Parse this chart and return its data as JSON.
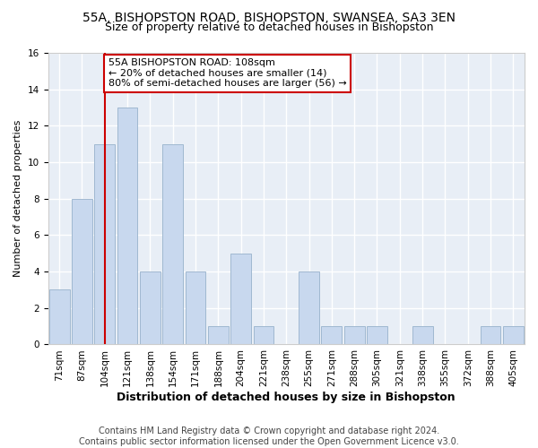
{
  "title1": "55A, BISHOPSTON ROAD, BISHOPSTON, SWANSEA, SA3 3EN",
  "title2": "Size of property relative to detached houses in Bishopston",
  "xlabel": "Distribution of detached houses by size in Bishopston",
  "ylabel": "Number of detached properties",
  "categories": [
    "71sqm",
    "87sqm",
    "104sqm",
    "121sqm",
    "138sqm",
    "154sqm",
    "171sqm",
    "188sqm",
    "204sqm",
    "221sqm",
    "238sqm",
    "255sqm",
    "271sqm",
    "288sqm",
    "305sqm",
    "321sqm",
    "338sqm",
    "355sqm",
    "372sqm",
    "388sqm",
    "405sqm"
  ],
  "values": [
    3,
    8,
    11,
    13,
    4,
    11,
    4,
    1,
    5,
    1,
    0,
    4,
    1,
    1,
    1,
    0,
    1,
    0,
    0,
    1,
    1
  ],
  "bar_color": "#c8d8ee",
  "bar_edge_color": "#a0b8d0",
  "vline_x": 2,
  "vline_color": "#cc0000",
  "annotation_text": "55A BISHOPSTON ROAD: 108sqm\n← 20% of detached houses are smaller (14)\n80% of semi-detached houses are larger (56) →",
  "annotation_box_color": "#ffffff",
  "annotation_box_edge_color": "#cc0000",
  "ylim": [
    0,
    16
  ],
  "yticks": [
    0,
    2,
    4,
    6,
    8,
    10,
    12,
    14,
    16
  ],
  "footnote": "Contains HM Land Registry data © Crown copyright and database right 2024.\nContains public sector information licensed under the Open Government Licence v3.0.",
  "bg_color": "#ffffff",
  "plot_bg_color": "#e8eef6",
  "grid_color": "#ffffff",
  "title1_fontsize": 10,
  "title2_fontsize": 9,
  "xlabel_fontsize": 9,
  "ylabel_fontsize": 8,
  "tick_fontsize": 7.5,
  "annotation_fontsize": 8,
  "footnote_fontsize": 7
}
